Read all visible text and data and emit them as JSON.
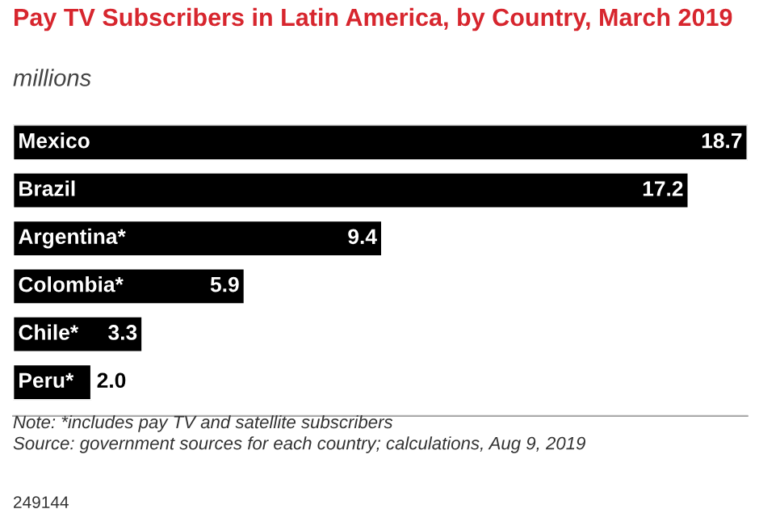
{
  "chart_data": {
    "type": "bar",
    "orientation": "horizontal",
    "title": "Pay TV Subscribers in Latin America, by Country, March 2019",
    "subtitle": "millions",
    "categories": [
      "Mexico",
      "Brazil",
      "Argentina*",
      "Colombia*",
      "Chile*",
      "Peru*"
    ],
    "values": [
      18.7,
      17.2,
      9.4,
      5.9,
      3.3,
      2.0
    ],
    "value_labels": [
      "18.7",
      "17.2",
      "9.4",
      "5.9",
      "3.3",
      "2.0"
    ],
    "color": "#000000",
    "annotations": [
      "Note: *includes pay TV and satellite subscribers",
      "Source: government sources for each country; calculations, Aug 9, 2019",
      "249144"
    ],
    "legend": false
  }
}
